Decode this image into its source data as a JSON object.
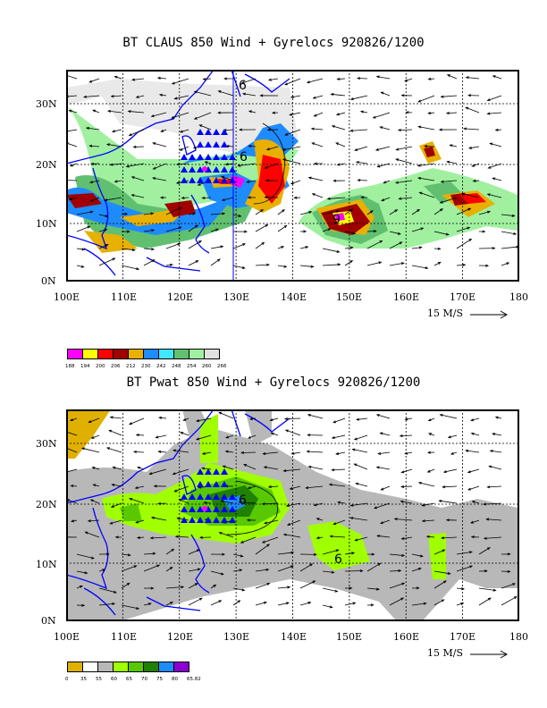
{
  "panels": [
    {
      "title": "BT CLAUS 850 Wind + Gyrelocs 920826/1200",
      "lat_labels": [
        "30N",
        "20N",
        "10N",
        "0N"
      ],
      "lon_labels": [
        "100E",
        "110E",
        "120E",
        "130E",
        "140E",
        "150E",
        "160E",
        "170E",
        "180"
      ],
      "ref_vector": "15 M/S",
      "colorbar_labels": [
        "188",
        "194",
        "200",
        "206",
        "212",
        "230",
        "242",
        "248",
        "254",
        "260",
        "266"
      ],
      "colors": [
        "#ff00ff",
        "#ffff00",
        "#ff0000",
        "#a00000",
        "#e8b000",
        "#1e8cff",
        "#40e8ff",
        "#60c070",
        "#a0f0a0",
        "#e0e0e0"
      ]
    },
    {
      "title": "BT Pwat 850 Wind + Gyrelocs 920826/1200",
      "lat_labels": [
        "30N",
        "20N",
        "10N",
        "0N"
      ],
      "lon_labels": [
        "100E",
        "110E",
        "120E",
        "130E",
        "140E",
        "150E",
        "160E",
        "170E",
        "180"
      ],
      "ref_vector": "15 M/S",
      "colorbar_labels": [
        "0",
        "35",
        "55",
        "60",
        "65",
        "70",
        "75",
        "80",
        "65.82"
      ],
      "colors": [
        "#e0b000",
        "#ffffff",
        "#b8b8b8",
        "#a0ff00",
        "#58c800",
        "#208000",
        "#1e8cff",
        "#8a00d0"
      ]
    }
  ]
}
